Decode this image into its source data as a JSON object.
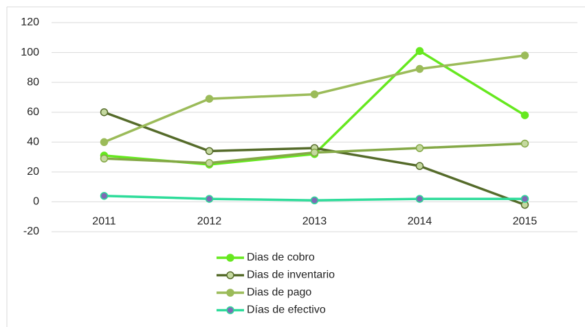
{
  "chart_data": {
    "type": "line",
    "categories": [
      "2011",
      "2012",
      "2013",
      "2014",
      "2015"
    ],
    "series": [
      {
        "name": "Dias de cobro",
        "color": "#66e81f",
        "marker": "#66e81f",
        "values": [
          31,
          25,
          32,
          101,
          58
        ]
      },
      {
        "name": "Dias de inventario",
        "color": "#556b2a",
        "marker": "#c5d9a0",
        "values": [
          60,
          34,
          36,
          24,
          -2
        ]
      },
      {
        "name": "Dias de pago",
        "color": "#9bbb59",
        "marker": "#9bbb59",
        "values": [
          40,
          69,
          72,
          89,
          98
        ]
      },
      {
        "name": "Días de efectivo",
        "color": "#2edc9a",
        "marker": "#7e6ab5",
        "values": [
          4,
          2,
          1,
          2,
          2
        ]
      },
      {
        "color": "#84a846",
        "marker": "#c5d9a0",
        "values": [
          29,
          26,
          33,
          36,
          39
        ]
      }
    ],
    "ylim": [
      -20,
      120
    ],
    "yticks": [
      -20,
      0,
      20,
      40,
      60,
      80,
      100,
      120
    ],
    "grid": true,
    "legend": "bottom"
  }
}
